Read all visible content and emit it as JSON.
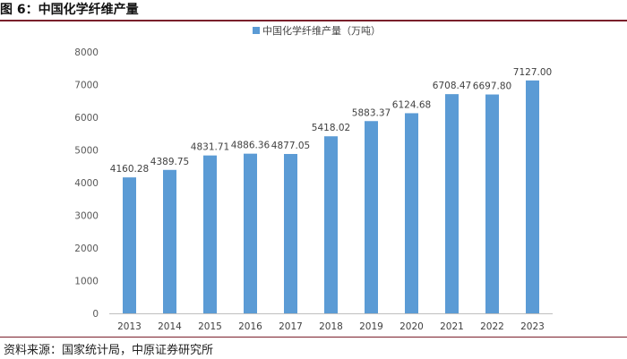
{
  "figure": {
    "title": "图 6：中国化学纤维产量",
    "source": "资料来源：国家统计局，中原证券研究所"
  },
  "chart_data": {
    "type": "bar",
    "title": "",
    "legend": "中国化学纤维产量（万吨）",
    "legend_position": "top",
    "color": "#5b9bd5",
    "categories": [
      "2013",
      "2014",
      "2015",
      "2016",
      "2017",
      "2018",
      "2019",
      "2020",
      "2021",
      "2022",
      "2023"
    ],
    "values": [
      4160.28,
      4389.75,
      4831.71,
      4886.36,
      4877.05,
      5418.02,
      5883.37,
      6124.68,
      6708.47,
      6697.8,
      7127.0
    ],
    "value_labels": [
      "4160.28",
      "4389.75",
      "4831.71",
      "4886.36",
      "4877.05",
      "5418.02",
      "5883.37",
      "6124.68",
      "6708.47",
      "6697.80",
      "7127.00"
    ],
    "ylim": [
      0,
      8000
    ],
    "yticks": [
      0,
      1000,
      2000,
      3000,
      4000,
      5000,
      6000,
      7000,
      8000
    ],
    "xlabel": "",
    "ylabel": "",
    "grid": false
  }
}
